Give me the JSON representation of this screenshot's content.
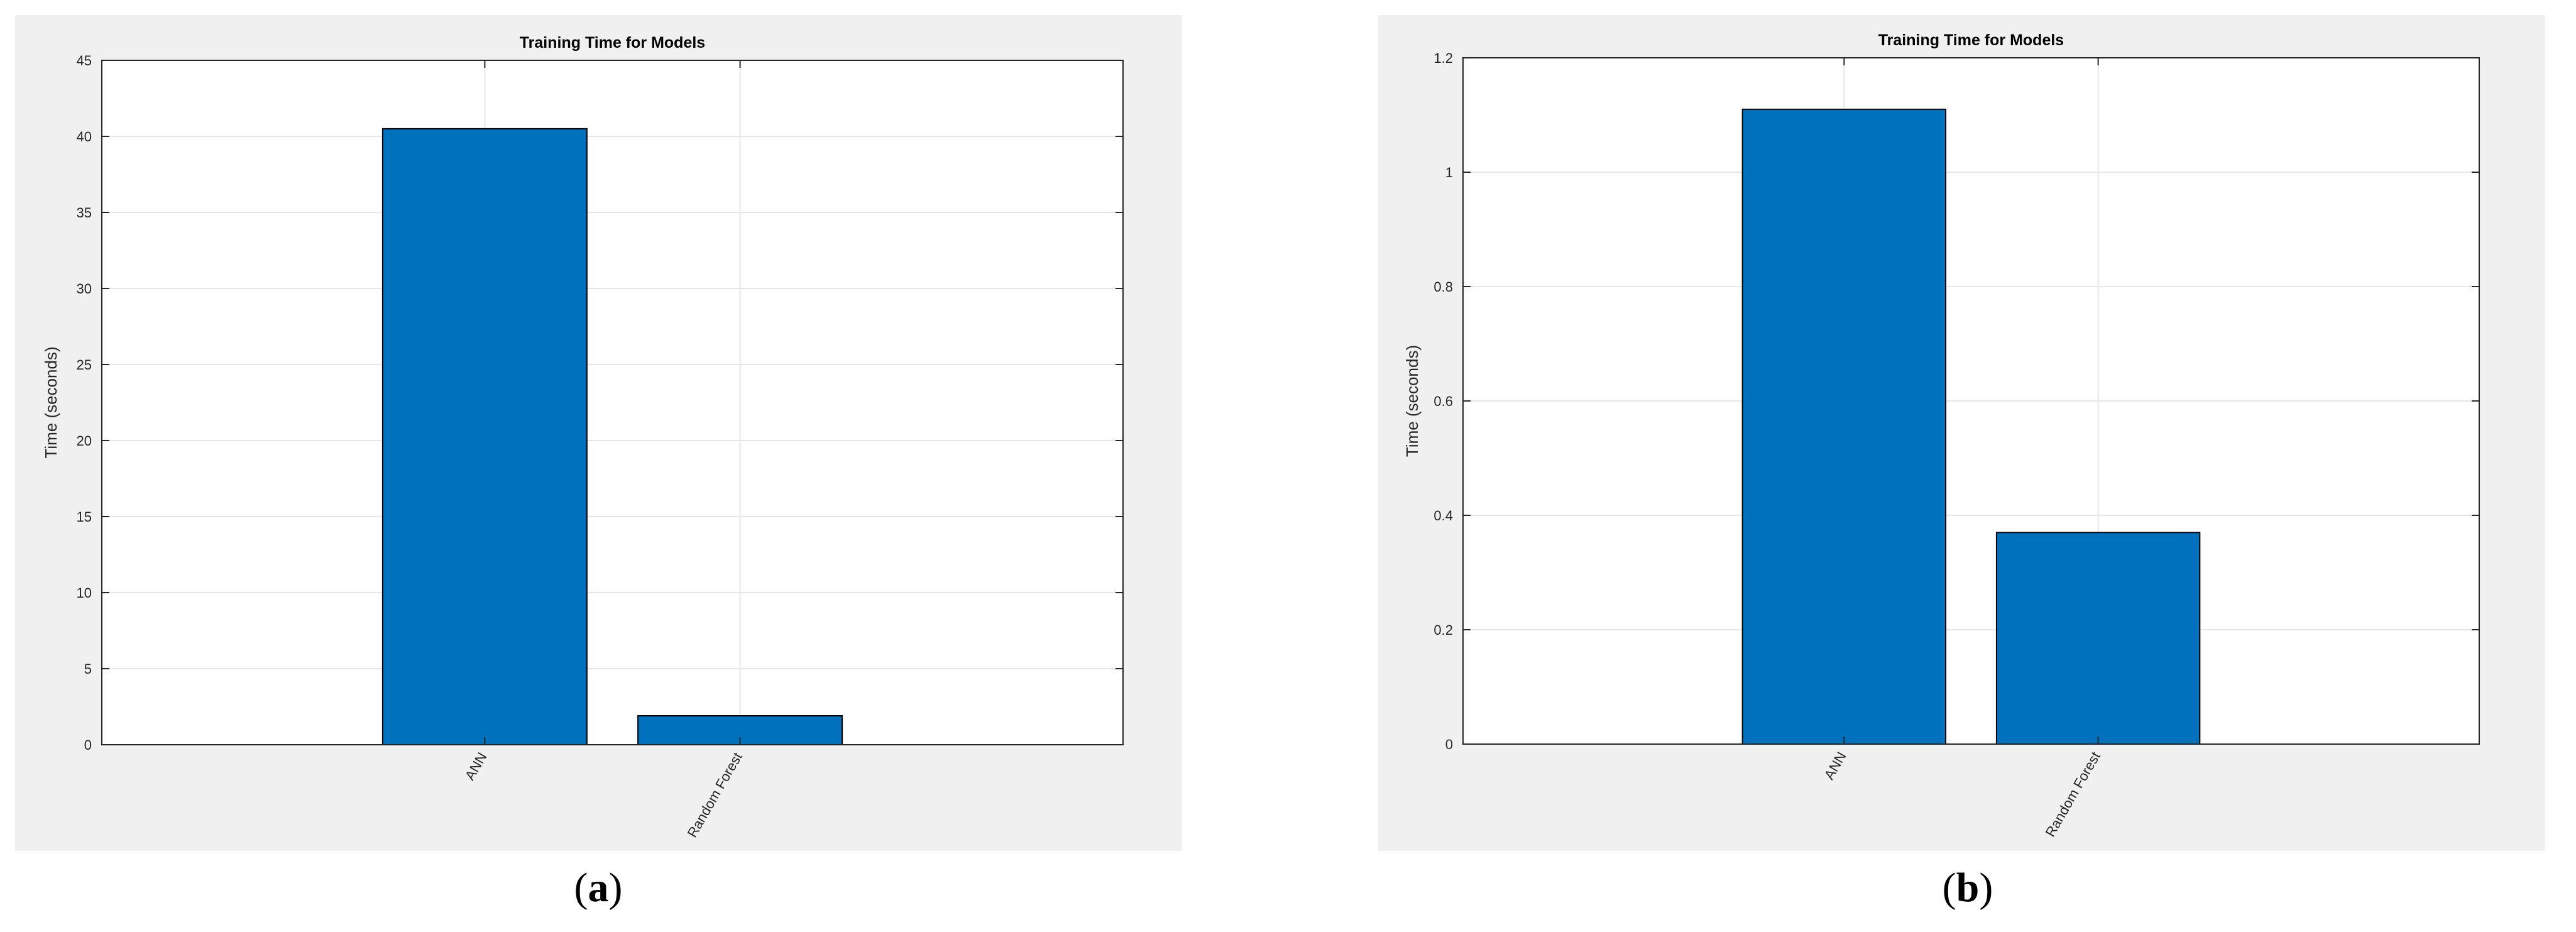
{
  "chart_data": [
    {
      "type": "bar",
      "title": "Training Time for Models",
      "xlabel": "",
      "ylabel": "Time (seconds)",
      "categories": [
        "ANN",
        "Random Forest"
      ],
      "values": [
        40.5,
        1.9
      ],
      "ylim": [
        0,
        45
      ],
      "yticks": [
        0,
        5,
        10,
        15,
        20,
        25,
        30,
        35,
        40,
        45
      ],
      "grid": true,
      "bar_color": "#0072bd"
    },
    {
      "type": "bar",
      "title": "Training Time for Models",
      "xlabel": "",
      "ylabel": "Time (seconds)",
      "categories": [
        "ANN",
        "Random Forest"
      ],
      "values": [
        1.11,
        0.37
      ],
      "ylim": [
        0,
        1.2
      ],
      "yticks": [
        0,
        0.2,
        0.4,
        0.6,
        0.8,
        1,
        1.2
      ],
      "grid": true,
      "bar_color": "#0072bd"
    }
  ],
  "panel_labels": [
    {
      "open": "(",
      "letter": "a",
      "close": ")"
    },
    {
      "open": "(",
      "letter": "b",
      "close": ")"
    }
  ]
}
